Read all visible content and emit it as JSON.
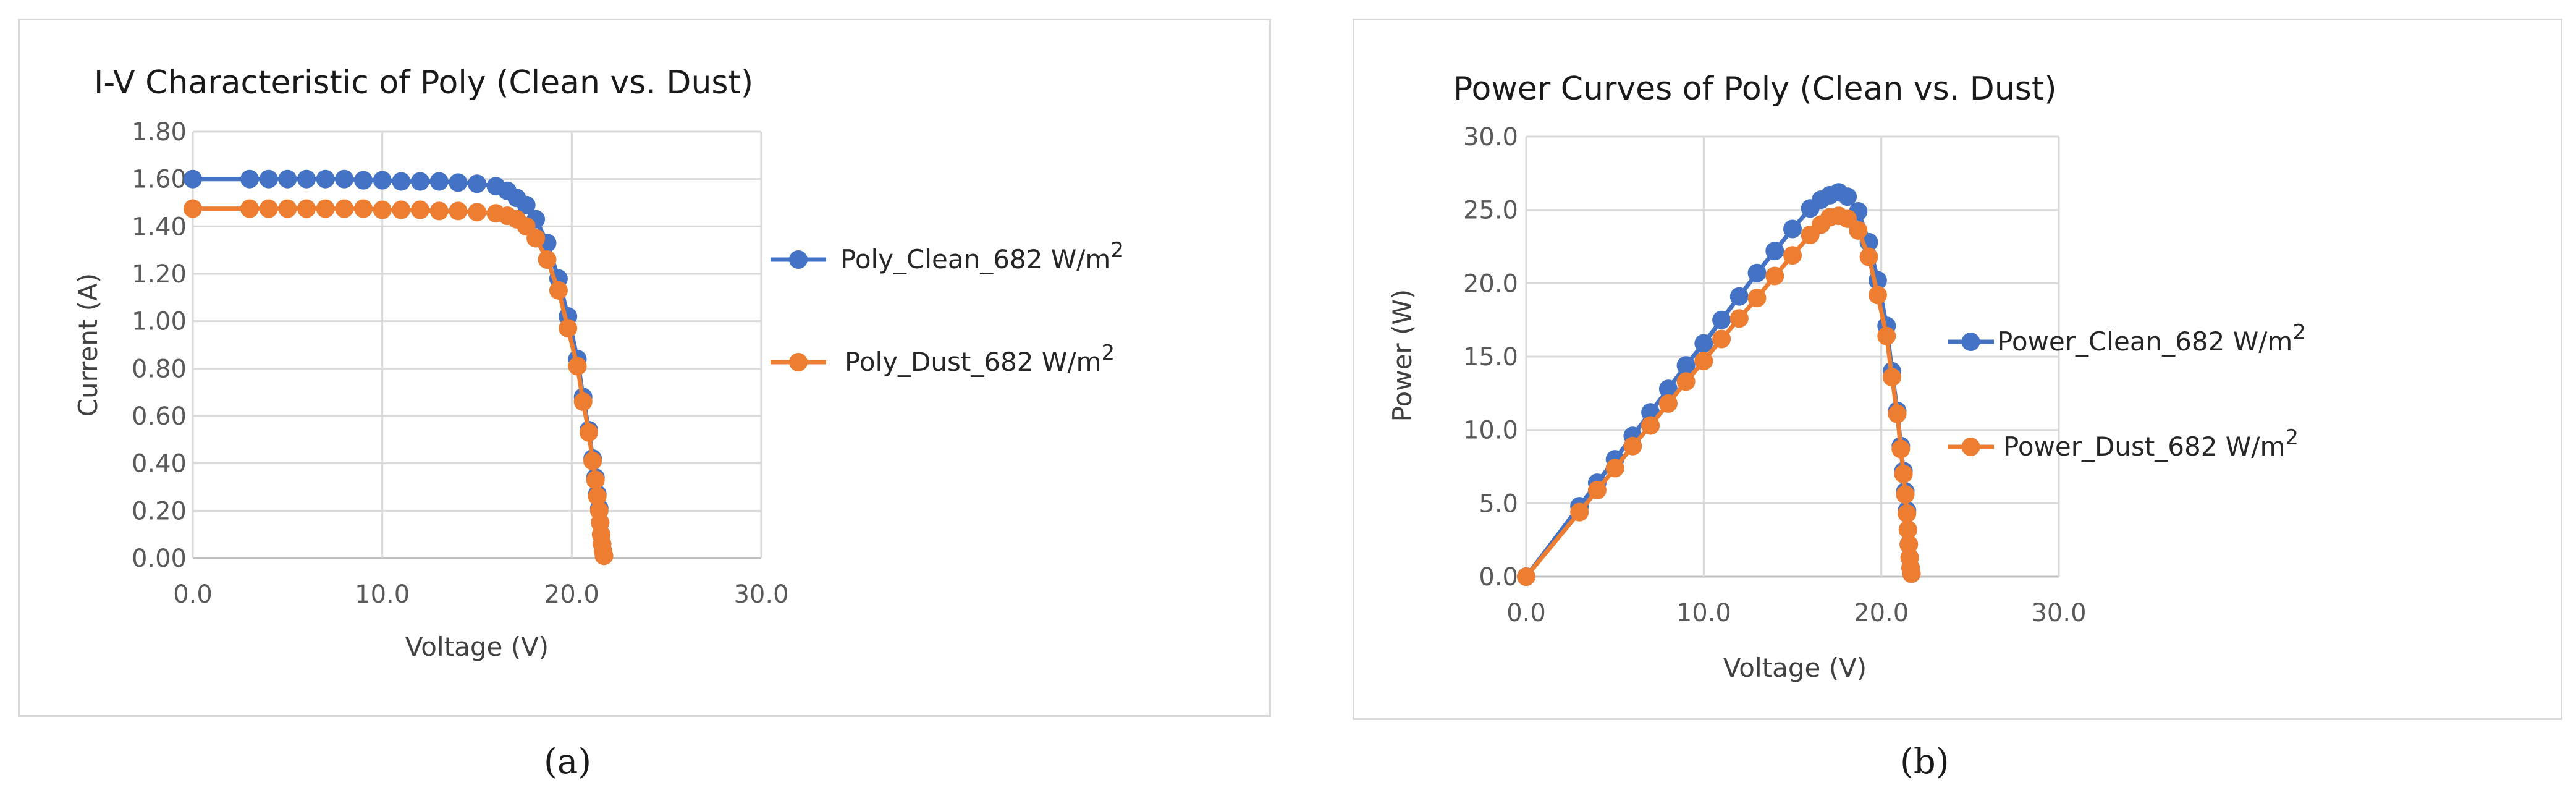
{
  "chart_data": [
    {
      "type": "scatter",
      "title": "I-V Characteristic of Poly (Clean vs. Dust)",
      "xlabel": "Voltage (V)",
      "ylabel": "Current (A)",
      "xlim": [
        0,
        30
      ],
      "ylim": [
        0,
        1.8
      ],
      "x_ticks": [
        "0.0",
        "10.0",
        "20.0",
        "30.0"
      ],
      "y_ticks": [
        "0.00",
        "0.20",
        "0.40",
        "0.60",
        "0.80",
        "1.00",
        "1.20",
        "1.40",
        "1.60",
        "1.80"
      ],
      "grid": true,
      "legend_position": "right",
      "series": [
        {
          "name": "Poly_Clean_682 W/m",
          "name_sup": "2",
          "color": "#4472c4",
          "x": [
            0,
            3,
            4,
            5,
            6,
            7,
            8,
            9,
            10,
            11,
            12,
            13,
            14,
            15,
            16,
            16.6,
            17.1,
            17.6,
            18.1,
            18.7,
            19.3,
            19.8,
            20.3,
            20.6,
            20.9,
            21.1,
            21.25,
            21.35,
            21.45,
            21.5,
            21.55,
            21.6,
            21.65,
            21.7
          ],
          "y": [
            1.6,
            1.6,
            1.6,
            1.6,
            1.6,
            1.6,
            1.6,
            1.595,
            1.595,
            1.59,
            1.59,
            1.59,
            1.585,
            1.58,
            1.57,
            1.55,
            1.52,
            1.49,
            1.43,
            1.33,
            1.18,
            1.02,
            0.84,
            0.68,
            0.54,
            0.42,
            0.34,
            0.27,
            0.21,
            0.15,
            0.1,
            0.06,
            0.03,
            0.01
          ]
        },
        {
          "name": "Poly_Dust_682 W/m",
          "name_sup": "2",
          "color": "#ed7d31",
          "x": [
            0,
            3,
            4,
            5,
            6,
            7,
            8,
            9,
            10,
            11,
            12,
            13,
            14,
            15,
            16,
            16.6,
            17.1,
            17.6,
            18.1,
            18.7,
            19.3,
            19.8,
            20.3,
            20.6,
            20.9,
            21.1,
            21.25,
            21.35,
            21.45,
            21.5,
            21.55,
            21.6,
            21.65,
            21.7
          ],
          "y": [
            1.475,
            1.475,
            1.475,
            1.475,
            1.475,
            1.475,
            1.475,
            1.475,
            1.47,
            1.47,
            1.47,
            1.465,
            1.465,
            1.46,
            1.455,
            1.445,
            1.43,
            1.4,
            1.35,
            1.26,
            1.13,
            0.97,
            0.81,
            0.66,
            0.53,
            0.41,
            0.33,
            0.26,
            0.2,
            0.15,
            0.1,
            0.06,
            0.03,
            0.01
          ]
        }
      ]
    },
    {
      "type": "line",
      "title": "Power Curves of Poly (Clean vs. Dust)",
      "xlabel": "Voltage (V)",
      "ylabel": "Power (W)",
      "xlim": [
        0,
        30
      ],
      "ylim": [
        0,
        30
      ],
      "x_ticks": [
        "0.0",
        "10.0",
        "20.0",
        "30.0"
      ],
      "y_ticks": [
        "0.0",
        "5.0",
        "10.0",
        "15.0",
        "20.0",
        "25.0",
        "30.0"
      ],
      "grid": true,
      "legend_position": "right",
      "series": [
        {
          "name": "Power_Clean_682 W/m",
          "name_sup": "2",
          "color": "#4472c4",
          "x": [
            0,
            3,
            4,
            5,
            6,
            7,
            8,
            9,
            10,
            11,
            12,
            13,
            14,
            15,
            16,
            16.6,
            17.1,
            17.6,
            18.1,
            18.7,
            19.3,
            19.8,
            20.3,
            20.6,
            20.9,
            21.1,
            21.25,
            21.35,
            21.45,
            21.5,
            21.55,
            21.6,
            21.65,
            21.7
          ],
          "y": [
            0,
            4.8,
            6.4,
            8.0,
            9.6,
            11.2,
            12.8,
            14.4,
            15.9,
            17.5,
            19.1,
            20.7,
            22.2,
            23.7,
            25.1,
            25.7,
            26.0,
            26.2,
            25.9,
            24.9,
            22.8,
            20.2,
            17.1,
            14.0,
            11.3,
            8.9,
            7.2,
            5.8,
            4.5,
            3.2,
            2.2,
            1.3,
            0.6,
            0.2
          ]
        },
        {
          "name": "Power_Dust_682 W/m",
          "name_sup": "2",
          "color": "#ed7d31",
          "x": [
            0,
            3,
            4,
            5,
            6,
            7,
            8,
            9,
            10,
            11,
            12,
            13,
            14,
            15,
            16,
            16.6,
            17.1,
            17.6,
            18.1,
            18.7,
            19.3,
            19.8,
            20.3,
            20.6,
            20.9,
            21.1,
            21.25,
            21.35,
            21.45,
            21.5,
            21.55,
            21.6,
            21.65,
            21.7
          ],
          "y": [
            0,
            4.4,
            5.9,
            7.4,
            8.9,
            10.3,
            11.8,
            13.3,
            14.7,
            16.2,
            17.6,
            19.0,
            20.5,
            21.9,
            23.3,
            24.0,
            24.5,
            24.6,
            24.4,
            23.6,
            21.8,
            19.2,
            16.4,
            13.6,
            11.1,
            8.7,
            7.0,
            5.6,
            4.3,
            3.2,
            2.2,
            1.3,
            0.6,
            0.2
          ]
        }
      ]
    }
  ],
  "captions": {
    "a": "(a)",
    "b": "(b)"
  }
}
